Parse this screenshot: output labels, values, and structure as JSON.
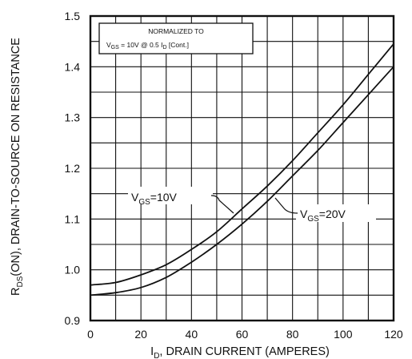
{
  "chart_data": {
    "type": "line",
    "xlim": [
      0,
      120
    ],
    "ylim": [
      0.9,
      1.5
    ],
    "grid": true,
    "x_ticks": [
      "0",
      "20",
      "40",
      "60",
      "80",
      "100",
      "120"
    ],
    "y_ticks": [
      "0.9",
      "1.0",
      "1.1",
      "1.2",
      "1.3",
      "1.4",
      "1.5"
    ],
    "x_tick_values": [
      0,
      20,
      40,
      60,
      80,
      100,
      120
    ],
    "y_tick_values": [
      0.9,
      1.0,
      1.1,
      1.2,
      1.3,
      1.4,
      1.5
    ],
    "xlabel": {
      "main": "I",
      "sub": "D",
      "rest": ", DRAIN CURRENT (AMPERES)"
    },
    "ylabel": {
      "main": "R",
      "sub": "DS",
      "rest": "(ON), DRAIN-TO-SOURCE ON RESISTANCE"
    },
    "annotation": {
      "line1": "NORMALIZED TO",
      "v": "V",
      "v_sub": "GS",
      "cond": " = 10V  @  0.5  I",
      "i_sub": "D",
      "tail": " [Cont.]"
    },
    "series": [
      {
        "name": "VGS=10V",
        "label": {
          "v": "V",
          "sub": "GS",
          "rest": "=10V"
        },
        "x": [
          0,
          10,
          20,
          30,
          40,
          50,
          60,
          70,
          80,
          90,
          100,
          110,
          120
        ],
        "y": [
          0.97,
          0.975,
          0.99,
          1.01,
          1.04,
          1.075,
          1.12,
          1.165,
          1.215,
          1.27,
          1.325,
          1.385,
          1.445
        ]
      },
      {
        "name": "VGS=20V",
        "label": {
          "v": "V",
          "sub": "GS",
          "rest": "=20V"
        },
        "x": [
          0,
          10,
          20,
          30,
          40,
          50,
          60,
          70,
          80,
          90,
          100,
          110,
          120
        ],
        "y": [
          0.95,
          0.955,
          0.965,
          0.985,
          1.015,
          1.05,
          1.09,
          1.135,
          1.185,
          1.235,
          1.29,
          1.345,
          1.4
        ]
      }
    ]
  }
}
